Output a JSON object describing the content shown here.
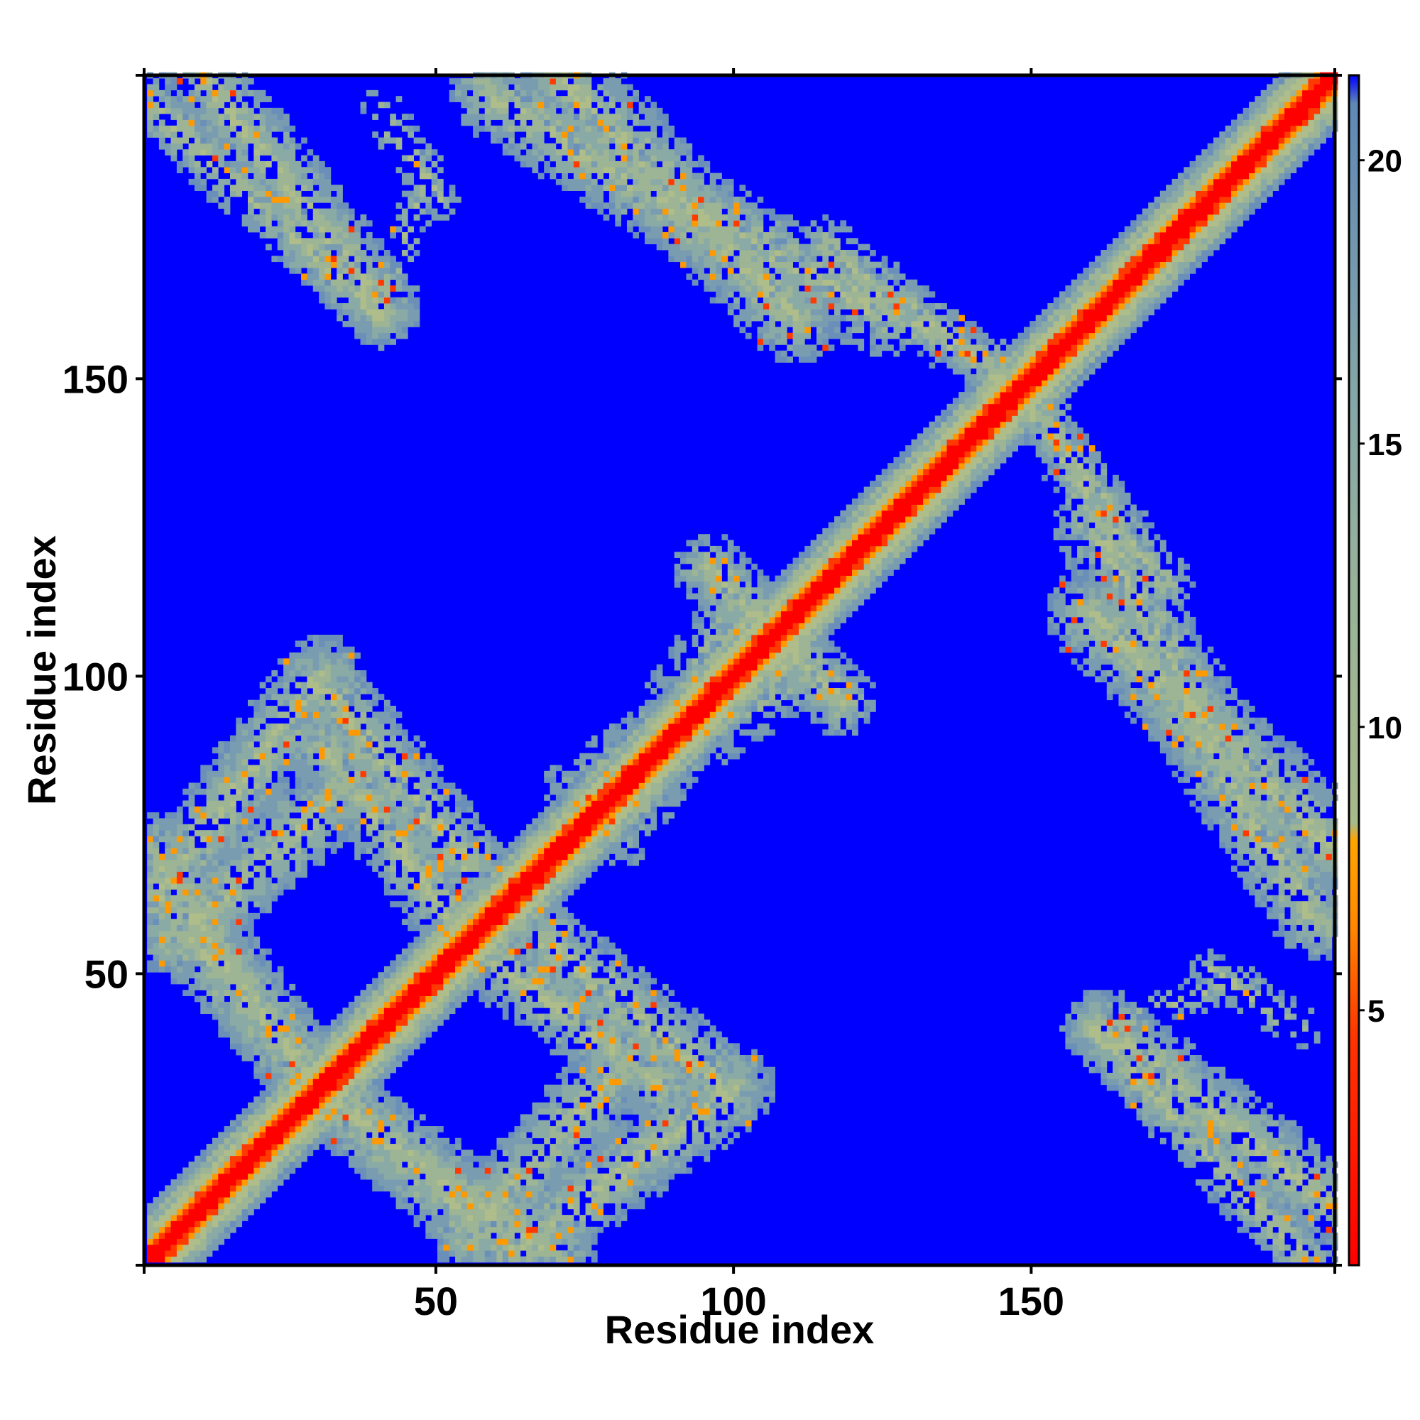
{
  "chart_data": {
    "type": "heatmap",
    "title": "",
    "xlabel": "Residue index",
    "ylabel": "Residue index",
    "n_residues": 201,
    "xlim": [
      1,
      201
    ],
    "ylim": [
      1,
      201
    ],
    "x_ticks": [
      50,
      100,
      150
    ],
    "y_ticks": [
      50,
      100,
      150
    ],
    "x_tick_labels": [
      "50",
      "100",
      "150"
    ],
    "y_tick_labels": [
      "50",
      "100",
      "150"
    ],
    "colorbar": {
      "range": [
        0.5,
        21.5
      ],
      "ticks": [
        5,
        10,
        15,
        20
      ],
      "tick_labels": [
        "5",
        "10",
        "15",
        "20"
      ],
      "stops": [
        {
          "value": 0.5,
          "color": "#ff0000"
        },
        {
          "value": 4.5,
          "color": "#ff3300"
        },
        {
          "value": 6.5,
          "color": "#ff8800"
        },
        {
          "value": 8.0,
          "color": "#ffa500"
        },
        {
          "value": 8.3,
          "color": "#a8b98a"
        },
        {
          "value": 12.0,
          "color": "#9ab398"
        },
        {
          "value": 16.0,
          "color": "#84a6a8"
        },
        {
          "value": 21.0,
          "color": "#5f88b6"
        },
        {
          "value": 21.5,
          "color": "#0000ff"
        }
      ],
      "background_color": "#0000ff"
    },
    "diagonal": {
      "core_width": 2,
      "band_halfwidth": 9
    },
    "contact_bands": [
      {
        "x": [
          1,
          40
        ],
        "y": [
          196,
          160
        ],
        "halfwidth": 5,
        "density": 0.7
      },
      {
        "x": [
          40,
          48
        ],
        "y": [
          160,
          186
        ],
        "halfwidth": 3,
        "density": 0.4
      },
      {
        "x": [
          58,
          94
        ],
        "y": [
          198,
          175
        ],
        "halfwidth": 7,
        "density": 0.75
      },
      {
        "x": [
          94,
          125
        ],
        "y": [
          178,
          160
        ],
        "halfwidth": 7,
        "density": 0.6
      },
      {
        "x": [
          120,
          150
        ],
        "y": [
          165,
          148
        ],
        "halfwidth": 5,
        "density": 0.6
      },
      {
        "x": [
          150,
          162
        ],
        "y": [
          144,
          130
        ],
        "halfwidth": 4,
        "density": 0.55
      },
      {
        "x": [
          162,
          172
        ],
        "y": [
          128,
          115
        ],
        "halfwidth": 5,
        "density": 0.6
      },
      {
        "x": [
          160,
          201
        ],
        "y": [
          110,
          70
        ],
        "halfwidth": 8,
        "density": 0.8
      },
      {
        "x": [
          162,
          201
        ],
        "y": [
          40,
          10
        ],
        "halfwidth": 7,
        "density": 0.75
      },
      {
        "x": [
          180,
          195
        ],
        "y": [
          50,
          40
        ],
        "halfwidth": 4,
        "density": 0.35
      },
      {
        "x": [
          1,
          30
        ],
        "y": [
          60,
          100
        ],
        "halfwidth": 7,
        "density": 0.75
      },
      {
        "x": [
          30,
          55
        ],
        "y": [
          98,
          67
        ],
        "halfwidth": 7,
        "density": 0.75
      },
      {
        "x": [
          1,
          30
        ],
        "y": [
          70,
          28
        ],
        "halfwidth": 7,
        "density": 0.75
      },
      {
        "x": [
          30,
          55
        ],
        "y": [
          30,
          8
        ],
        "halfwidth": 7,
        "density": 0.75
      },
      {
        "x": [
          55,
          88
        ],
        "y": [
          55,
          30
        ],
        "halfwidth": 7,
        "density": 0.75
      },
      {
        "x": [
          55,
          80
        ],
        "y": [
          5,
          33
        ],
        "halfwidth": 7,
        "density": 0.75
      },
      {
        "x": [
          80,
          100
        ],
        "y": [
          75,
          108
        ],
        "halfwidth": 8,
        "density": 0.45
      },
      {
        "x": [
          95,
          118
        ],
        "y": [
          118,
          95
        ],
        "halfwidth": 6,
        "density": 0.55
      }
    ]
  }
}
